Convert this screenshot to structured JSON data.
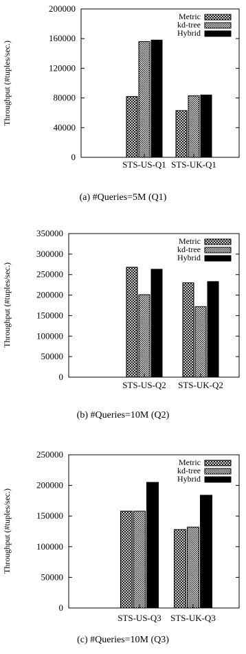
{
  "colors": {
    "axis": "#000000",
    "bar_fill_hybrid": "#000000",
    "background": "#ffffff"
  },
  "series_names": [
    "Metric",
    "kd-tree",
    "Hybrid"
  ],
  "chart_data": [
    {
      "type": "bar",
      "caption": "(a)  #Queries=5M  (Q1)",
      "ylabel": "Throughput (#tuples/sec.)",
      "ylim": [
        0,
        200000
      ],
      "yticks": [
        "0",
        "40000",
        "80000",
        "120000",
        "160000",
        "200000"
      ],
      "ytick_values": [
        0,
        40000,
        80000,
        120000,
        160000,
        200000
      ],
      "categories": [
        "STS-US-Q1",
        "STS-UK-Q1"
      ],
      "legend_position": "top-right",
      "series": [
        {
          "name": "Metric",
          "pattern": "crosshatch",
          "values": [
            82000,
            63000
          ]
        },
        {
          "name": "kd-tree",
          "pattern": "dots",
          "values": [
            156000,
            83000
          ]
        },
        {
          "name": "Hybrid",
          "pattern": "solid",
          "values": [
            158000,
            84000
          ]
        }
      ]
    },
    {
      "type": "bar",
      "caption": "(b)  #Queries=10M  (Q2)",
      "ylabel": "Throughput (#tuples/sec.)",
      "ylim": [
        0,
        350000
      ],
      "yticks": [
        "0",
        "50000",
        "100000",
        "150000",
        "200000",
        "250000",
        "300000",
        "350000"
      ],
      "ytick_values": [
        0,
        50000,
        100000,
        150000,
        200000,
        250000,
        300000,
        350000
      ],
      "categories": [
        "STS-US-Q2",
        "STS-UK-Q2"
      ],
      "legend_position": "top-right",
      "series": [
        {
          "name": "Metric",
          "pattern": "crosshatch",
          "values": [
            268000,
            230000
          ]
        },
        {
          "name": "kd-tree",
          "pattern": "dots",
          "values": [
            201000,
            172000
          ]
        },
        {
          "name": "Hybrid",
          "pattern": "solid",
          "values": [
            263000,
            233000
          ]
        }
      ]
    },
    {
      "type": "bar",
      "caption": "(c)  #Queries=10M  (Q3)",
      "ylabel": "Throughput (#tuples/sec.)",
      "ylim": [
        0,
        250000
      ],
      "yticks": [
        "0",
        "50000",
        "100000",
        "150000",
        "200000",
        "250000"
      ],
      "ytick_values": [
        0,
        50000,
        100000,
        150000,
        200000,
        250000
      ],
      "categories": [
        "STS-US-Q3",
        "STS-UK-Q3"
      ],
      "legend_position": "top-right",
      "series": [
        {
          "name": "Metric",
          "pattern": "crosshatch",
          "values": [
            158000,
            128000
          ]
        },
        {
          "name": "kd-tree",
          "pattern": "dots",
          "values": [
            158000,
            132000
          ]
        },
        {
          "name": "Hybrid",
          "pattern": "solid",
          "values": [
            205000,
            184000
          ]
        }
      ]
    }
  ]
}
